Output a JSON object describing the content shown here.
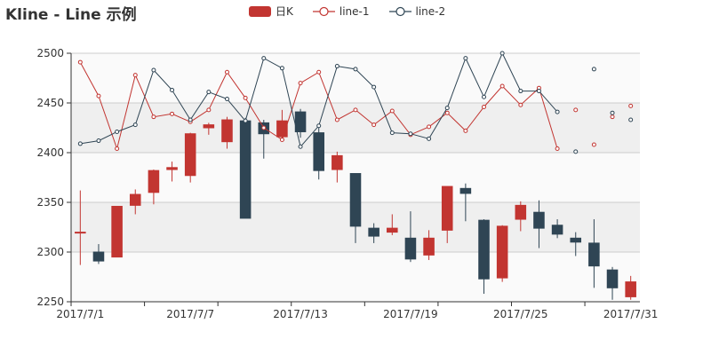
{
  "chart_data": {
    "type": "candlestick-line",
    "title": "Kline - Line 示例",
    "legend": {
      "placement": "top-center",
      "items": [
        {
          "name": "日K",
          "symbol": "rect"
        },
        {
          "name": "line-1",
          "symbol": "circle-line"
        },
        {
          "name": "line-2",
          "symbol": "circle-line"
        }
      ]
    },
    "colors": {
      "up": "#c23531",
      "down": "#2f4554",
      "line1": "#c23531",
      "line2": "#2f4554",
      "grid_band": "#efefef",
      "grid_band_light": "#fafafa",
      "grid_line": "#cccccc",
      "axis": "#333333",
      "text": "#333333"
    },
    "x": [
      "2017/7/1",
      "2017/7/2",
      "2017/7/3",
      "2017/7/4",
      "2017/7/5",
      "2017/7/6",
      "2017/7/7",
      "2017/7/8",
      "2017/7/9",
      "2017/7/10",
      "2017/7/11",
      "2017/7/12",
      "2017/7/13",
      "2017/7/14",
      "2017/7/15",
      "2017/7/16",
      "2017/7/17",
      "2017/7/18",
      "2017/7/19",
      "2017/7/20",
      "2017/7/21",
      "2017/7/22",
      "2017/7/23",
      "2017/7/24",
      "2017/7/25",
      "2017/7/26",
      "2017/7/27",
      "2017/7/28",
      "2017/7/29",
      "2017/7/30",
      "2017/7/31"
    ],
    "x_tick_labels": [
      "2017/7/1",
      "2017/7/7",
      "2017/7/13",
      "2017/7/19",
      "2017/7/25",
      "2017/7/31"
    ],
    "ylim": [
      2250,
      2500
    ],
    "y_ticks": [
      2250,
      2300,
      2350,
      2400,
      2450,
      2500
    ],
    "series": [
      {
        "name": "日K",
        "type": "candlestick",
        "values": [
          [
            2320,
            2320,
            2287,
            2362
          ],
          [
            2300,
            2291,
            2288,
            2308
          ],
          [
            2295,
            2346,
            2295,
            2346
          ],
          [
            2347,
            2358,
            2338,
            2363
          ],
          [
            2360,
            2382,
            2348,
            2383
          ],
          [
            2383,
            2385,
            2371,
            2391
          ],
          [
            2377,
            2419,
            2370,
            2420
          ],
          [
            2425,
            2428,
            2418,
            2430
          ],
          [
            2411,
            2433,
            2404,
            2436
          ],
          [
            2432,
            2334,
            2334,
            2435
          ],
          [
            2430,
            2419,
            2394,
            2433
          ],
          [
            2416,
            2432,
            2413,
            2443
          ],
          [
            2441,
            2421,
            2415,
            2444
          ],
          [
            2420,
            2382,
            2373,
            2427
          ],
          [
            2383,
            2397,
            2370,
            2401
          ],
          [
            2379,
            2326,
            2309,
            2379
          ],
          [
            2324,
            2316,
            2309,
            2329
          ],
          [
            2320,
            2324,
            2317,
            2338
          ],
          [
            2314,
            2293,
            2290,
            2341
          ],
          [
            2297,
            2314,
            2292,
            2322
          ],
          [
            2322,
            2366,
            2309,
            2366
          ],
          [
            2364,
            2359,
            2331,
            2369
          ],
          [
            2332,
            2273,
            2258,
            2333
          ],
          [
            2274,
            2326,
            2270,
            2327
          ],
          [
            2333,
            2347,
            2321,
            2351
          ],
          [
            2340,
            2324,
            2304,
            2352
          ],
          [
            2327,
            2318,
            2314,
            2333
          ],
          [
            2314,
            2310,
            2296,
            2320
          ],
          [
            2309,
            2286,
            2264,
            2333
          ],
          [
            2282,
            2264,
            2252,
            2285
          ],
          [
            2255,
            2270,
            2252,
            2276
          ]
        ]
      },
      {
        "name": "line-1",
        "type": "line",
        "values": [
          2491,
          2457,
          2404,
          2478,
          2436,
          2439,
          2431,
          2443,
          2481,
          2455,
          2425,
          2413,
          2470,
          2481,
          2433,
          2443,
          2428,
          2442,
          2418,
          2426,
          2440,
          2422,
          2446,
          2467,
          2448,
          2465,
          2404,
          2443,
          2408,
          2436,
          2447
        ],
        "connected_until": 26
      },
      {
        "name": "line-2",
        "type": "line",
        "values": [
          2409,
          2412,
          2421,
          2428,
          2483,
          2463,
          2433,
          2461,
          2454,
          2432,
          2495,
          2485,
          2406,
          2427,
          2487,
          2484,
          2466,
          2420,
          2419,
          2414,
          2445,
          2495,
          2456,
          2500,
          2462,
          2462,
          2441,
          2401,
          2484,
          2440,
          2433
        ],
        "connected_until": 26
      }
    ]
  }
}
